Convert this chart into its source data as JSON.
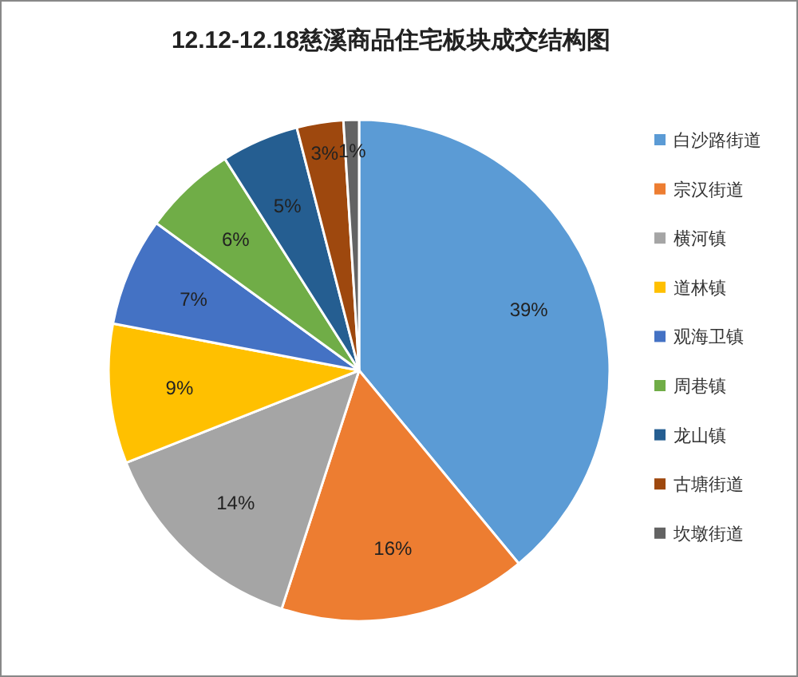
{
  "chart_data": {
    "type": "pie",
    "title": "12.12-12.18慈溪商品住宅板块成交结构图",
    "categories": [
      "白沙路街道",
      "宗汉街道",
      "横河镇",
      "道林镇",
      "观海卫镇",
      "周巷镇",
      "龙山镇",
      "古塘街道",
      "坎墩街道"
    ],
    "values": [
      39,
      16,
      14,
      9,
      7,
      6,
      5,
      3,
      1
    ],
    "colors": [
      "#5b9bd5",
      "#ed7d31",
      "#a5a5a5",
      "#ffc000",
      "#4472c4",
      "#70ad47",
      "#255e91",
      "#9e480e",
      "#636363"
    ],
    "value_labels": [
      "39%",
      "16%",
      "14%",
      "9%",
      "7%",
      "6%",
      "5%",
      "3%",
      "1%"
    ],
    "legend": "right"
  }
}
